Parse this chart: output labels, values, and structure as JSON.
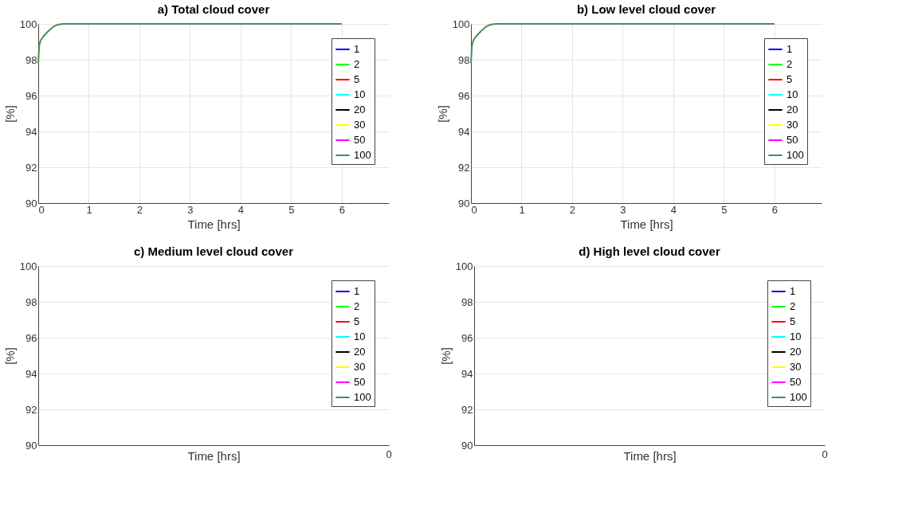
{
  "chart_data": [
    {
      "type": "line",
      "title": "a) Total cloud cover",
      "xlabel": "Time [hrs]",
      "ylabel": "[%]",
      "xlim": [
        0,
        6.93
      ],
      "xticks": [
        0,
        1,
        2,
        3,
        4,
        5,
        6
      ],
      "ylim": [
        90,
        100
      ],
      "yticks": [
        90,
        92,
        94,
        96,
        98,
        100
      ],
      "grid": true,
      "legend": "top right",
      "line_style": "solid",
      "x": [
        0,
        0.02,
        0.05,
        0.1,
        0.2,
        0.3,
        0.4,
        0.5,
        1,
        2,
        3,
        4,
        5,
        6
      ],
      "series": [
        {
          "name": "1",
          "color": "#0000ff",
          "values": [
            null,
            null,
            null,
            null,
            null,
            null,
            null,
            null,
            null,
            null,
            null,
            null,
            null,
            null
          ]
        },
        {
          "name": "2",
          "color": "#00ff00",
          "values": [
            null,
            null,
            null,
            null,
            null,
            null,
            null,
            null,
            null,
            null,
            null,
            null,
            null,
            null
          ]
        },
        {
          "name": "5",
          "color": "#ff0000",
          "values": [
            null,
            null,
            null,
            null,
            null,
            null,
            null,
            null,
            null,
            null,
            null,
            null,
            null,
            null
          ]
        },
        {
          "name": "10",
          "color": "#00ffff",
          "values": [
            null,
            null,
            null,
            null,
            null,
            null,
            null,
            null,
            null,
            null,
            null,
            null,
            null,
            null
          ]
        },
        {
          "name": "20",
          "color": "#000000",
          "values": [
            null,
            null,
            null,
            null,
            null,
            null,
            null,
            null,
            null,
            null,
            null,
            null,
            null,
            null
          ]
        },
        {
          "name": "30",
          "color": "#ffff00",
          "values": [
            null,
            null,
            null,
            null,
            null,
            null,
            null,
            null,
            null,
            null,
            null,
            null,
            null,
            null
          ]
        },
        {
          "name": "50",
          "color": "#ff00ff",
          "values": [
            null,
            null,
            null,
            null,
            null,
            null,
            null,
            null,
            null,
            null,
            null,
            null,
            null,
            null
          ]
        },
        {
          "name": "100",
          "color": "#4f8a5a",
          "values": [
            97.8,
            98.8,
            99.1,
            99.3,
            99.6,
            99.85,
            99.97,
            100,
            100,
            100,
            100,
            100,
            100,
            100
          ]
        }
      ]
    },
    {
      "type": "line",
      "title": "b) Low level cloud cover",
      "xlabel": "Time [hrs]",
      "ylabel": "[%]",
      "xlim": [
        0,
        6.93
      ],
      "xticks": [
        0,
        1,
        2,
        3,
        4,
        5,
        6
      ],
      "ylim": [
        90,
        100
      ],
      "yticks": [
        90,
        92,
        94,
        96,
        98,
        100
      ],
      "grid": true,
      "legend": "top right",
      "line_style": "solid",
      "x": [
        0,
        0.02,
        0.05,
        0.1,
        0.2,
        0.3,
        0.4,
        0.5,
        1,
        2,
        3,
        4,
        5,
        6
      ],
      "series": [
        {
          "name": "1",
          "color": "#0000ff",
          "values": [
            null,
            null,
            null,
            null,
            null,
            null,
            null,
            null,
            null,
            null,
            null,
            null,
            null,
            null
          ]
        },
        {
          "name": "2",
          "color": "#00ff00",
          "values": [
            null,
            null,
            null,
            null,
            null,
            null,
            null,
            null,
            null,
            null,
            null,
            null,
            null,
            null
          ]
        },
        {
          "name": "5",
          "color": "#ff0000",
          "values": [
            null,
            null,
            null,
            null,
            null,
            null,
            null,
            null,
            null,
            null,
            null,
            null,
            null,
            null
          ]
        },
        {
          "name": "10",
          "color": "#00ffff",
          "values": [
            null,
            null,
            null,
            null,
            null,
            null,
            null,
            null,
            null,
            null,
            null,
            null,
            null,
            null
          ]
        },
        {
          "name": "20",
          "color": "#000000",
          "values": [
            null,
            null,
            null,
            null,
            null,
            null,
            null,
            null,
            null,
            null,
            null,
            null,
            null,
            null
          ]
        },
        {
          "name": "30",
          "color": "#ffff00",
          "values": [
            null,
            null,
            null,
            null,
            null,
            null,
            null,
            null,
            null,
            null,
            null,
            null,
            null,
            null
          ]
        },
        {
          "name": "50",
          "color": "#ff00ff",
          "values": [
            null,
            null,
            null,
            null,
            null,
            null,
            null,
            null,
            null,
            null,
            null,
            null,
            null,
            null
          ]
        },
        {
          "name": "100",
          "color": "#4f8a5a",
          "values": [
            97.8,
            98.8,
            99.1,
            99.3,
            99.6,
            99.85,
            99.97,
            100,
            100,
            100,
            100,
            100,
            100,
            100
          ]
        }
      ]
    },
    {
      "type": "line",
      "title": "c) Medium level cloud cover",
      "xlabel": "Time [hrs]",
      "ylabel": "[%]",
      "annotations": [
        "0"
      ],
      "ylim": [
        90,
        100
      ],
      "yticks": [
        90,
        92,
        94,
        96,
        98,
        100
      ],
      "grid": true,
      "legend": "top right",
      "line_style": "solid",
      "categories": [
        null
      ],
      "series": [
        {
          "name": "1",
          "color": "#0000ff",
          "values": [
            null
          ]
        },
        {
          "name": "2",
          "color": "#00ff00",
          "values": [
            null
          ]
        },
        {
          "name": "5",
          "color": "#ff0000",
          "values": [
            null
          ]
        },
        {
          "name": "10",
          "color": "#00ffff",
          "values": [
            null
          ]
        },
        {
          "name": "20",
          "color": "#000000",
          "values": [
            null
          ]
        },
        {
          "name": "30",
          "color": "#ffff00",
          "values": [
            null
          ]
        },
        {
          "name": "50",
          "color": "#ff00ff",
          "values": [
            null
          ]
        },
        {
          "name": "100",
          "color": "#4f8a5a",
          "values": [
            null
          ]
        }
      ]
    },
    {
      "type": "line",
      "title": "d) High level cloud cover",
      "xlabel": "Time [hrs]",
      "ylabel": "[%]",
      "annotations": [
        "0"
      ],
      "ylim": [
        90,
        100
      ],
      "yticks": [
        90,
        92,
        94,
        96,
        98,
        100
      ],
      "grid": true,
      "legend": "top right",
      "line_style": "solid",
      "categories": [
        null
      ],
      "series": [
        {
          "name": "1",
          "color": "#0000ff",
          "values": [
            null
          ]
        },
        {
          "name": "2",
          "color": "#00ff00",
          "values": [
            null
          ]
        },
        {
          "name": "5",
          "color": "#ff0000",
          "values": [
            null
          ]
        },
        {
          "name": "10",
          "color": "#00ffff",
          "values": [
            null
          ]
        },
        {
          "name": "20",
          "color": "#000000",
          "values": [
            null
          ]
        },
        {
          "name": "30",
          "color": "#ffff00",
          "values": [
            null
          ]
        },
        {
          "name": "50",
          "color": "#ff00ff",
          "values": [
            null
          ]
        },
        {
          "name": "100",
          "color": "#4f8a5a",
          "values": [
            null
          ]
        }
      ]
    }
  ]
}
